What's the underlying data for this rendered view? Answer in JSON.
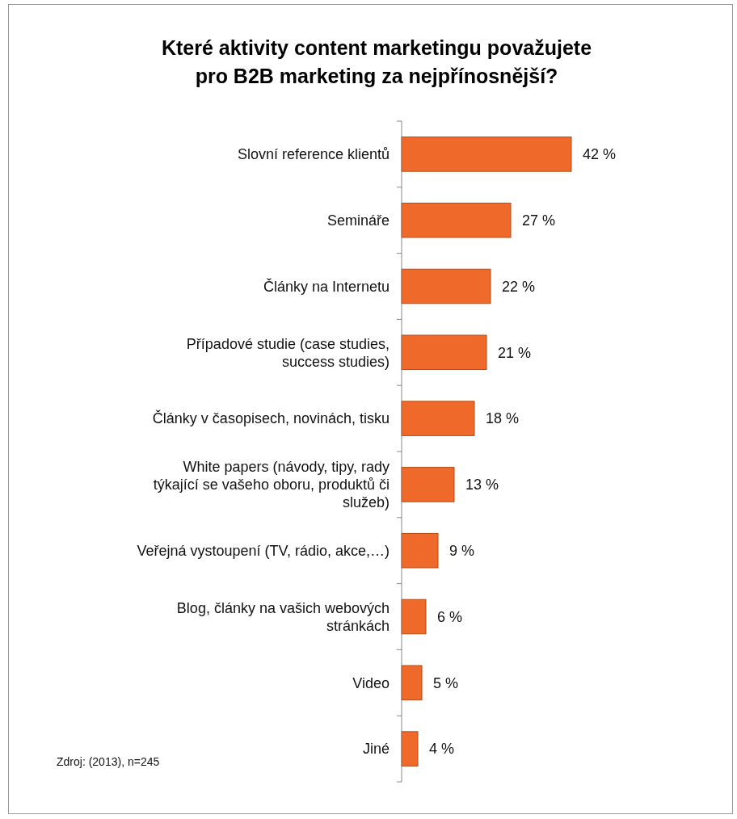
{
  "chart_data": {
    "type": "bar",
    "orientation": "horizontal",
    "title": "Které aktivity content marketingu považujete pro B2B marketing za nejpřínosnější?",
    "categories": [
      "Slovní reference klientů",
      "Semináře",
      "Články na Internetu",
      "Případové studie (case studies, success studies)",
      "Články v časopisech, novinách, tisku",
      "White papers (návody, tipy, rady týkající se vašeho oboru, produktů či služeb)",
      "Veřejná vystoupení (TV, rádio, akce,…)",
      "Blog, články na vašich webových stránkách",
      "Video",
      "Jiné"
    ],
    "values": [
      42,
      27,
      22,
      21,
      18,
      13,
      9,
      6,
      5,
      4
    ],
    "value_labels": [
      "42 %",
      "27 %",
      "22 %",
      "21 %",
      "18 %",
      "13 %",
      "9 %",
      "6 %",
      "5 %",
      "4 %"
    ],
    "color": "#ef6a2a",
    "annotations": [
      "Zdroj: (2013), n=245"
    ],
    "tick_labels": "y"
  }
}
